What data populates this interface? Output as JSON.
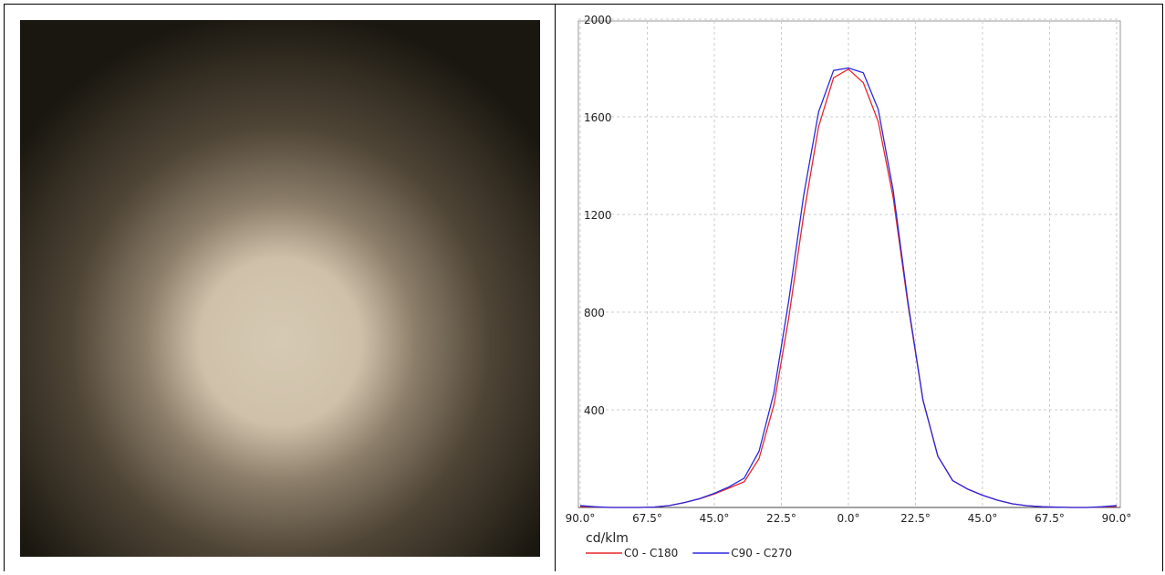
{
  "chart_data": {
    "type": "line",
    "x": [
      -90,
      -85,
      -80,
      -75,
      -70,
      -65,
      -60,
      -55,
      -50,
      -45,
      -40,
      -35,
      -30,
      -25,
      -20,
      -15,
      -10,
      -5,
      0,
      5,
      10,
      15,
      20,
      25,
      30,
      35,
      40,
      45,
      50,
      55,
      60,
      65,
      70,
      75,
      80,
      85,
      90
    ],
    "series": [
      {
        "name": "C0 - C180",
        "color": "#e8262a",
        "values": [
          5,
          2,
          0,
          0,
          0,
          2,
          8,
          20,
          35,
          55,
          80,
          105,
          200,
          420,
          780,
          1200,
          1560,
          1760,
          1795,
          1740,
          1580,
          1270,
          830,
          440,
          210,
          110,
          75,
          50,
          30,
          15,
          7,
          3,
          1,
          0,
          0,
          2,
          5
        ]
      },
      {
        "name": "C90 - C270",
        "color": "#2a2ae0",
        "values": [
          8,
          3,
          0,
          0,
          0,
          2,
          8,
          20,
          36,
          58,
          85,
          120,
          230,
          470,
          850,
          1280,
          1620,
          1790,
          1800,
          1780,
          1630,
          1300,
          840,
          440,
          210,
          110,
          75,
          50,
          30,
          15,
          7,
          3,
          1,
          0,
          0,
          3,
          8
        ]
      }
    ],
    "xlim": [
      -90,
      90
    ],
    "xticks": [
      {
        "value": -90,
        "label": "90.0°"
      },
      {
        "value": -67.5,
        "label": "67.5°"
      },
      {
        "value": -45,
        "label": "45.0°"
      },
      {
        "value": -22.5,
        "label": "22.5°"
      },
      {
        "value": 0,
        "label": "0.0°"
      },
      {
        "value": 22.5,
        "label": "22.5°"
      },
      {
        "value": 45,
        "label": "45.0°"
      },
      {
        "value": 67.5,
        "label": "67.5°"
      },
      {
        "value": 90,
        "label": "90.0°"
      }
    ],
    "ylim": [
      0,
      2000
    ],
    "yticks": [
      400,
      800,
      1200,
      1600,
      2000
    ],
    "y_label": "cd/klm",
    "grid": true
  }
}
